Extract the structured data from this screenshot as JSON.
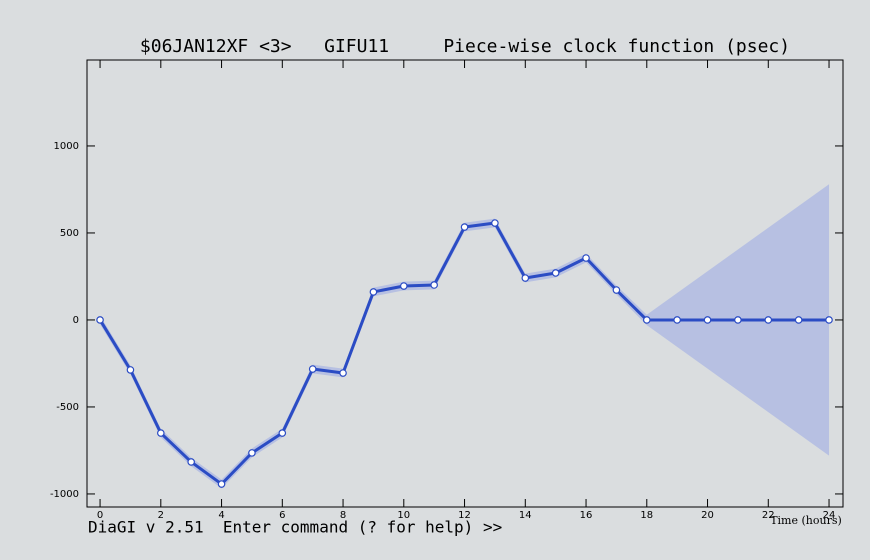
{
  "chart_data": {
    "type": "line",
    "title": "$06JAN12XF <3>   GIFU11     Piece-wise clock function (psec)",
    "x_label": "Time (hours)",
    "prompt": "DiaGI v 2.51  Enter command (? for help) >>",
    "x": [
      0,
      1,
      2,
      3,
      4,
      5,
      6,
      7,
      8,
      9,
      10,
      11,
      12,
      13,
      14,
      15,
      16,
      17,
      18,
      19,
      20,
      21,
      22,
      23,
      24
    ],
    "series": [
      {
        "color": "#2b4cc4",
        "band_color": "#8c9ee6",
        "values": [
          0,
          -287,
          -650,
          -816,
          -943,
          -764,
          -650,
          -282,
          -305,
          161,
          195,
          201,
          534,
          557,
          241,
          270,
          356,
          172,
          0,
          0,
          0,
          0,
          0,
          0,
          0
        ],
        "errors": [
          25,
          25,
          25,
          25,
          25,
          25,
          25,
          25,
          25,
          25,
          25,
          25,
          25,
          25,
          25,
          25,
          25,
          25,
          30,
          155,
          280,
          405,
          530,
          655,
          780
        ]
      }
    ],
    "xlim": [
      -0.43,
      24.46
    ],
    "ylim": [
      -1075,
      1494
    ],
    "xticks": [
      0,
      2,
      4,
      6,
      8,
      10,
      12,
      14,
      16,
      18,
      20,
      22,
      24
    ],
    "yticks": [
      -1000,
      -500,
      0,
      500,
      1000
    ]
  }
}
